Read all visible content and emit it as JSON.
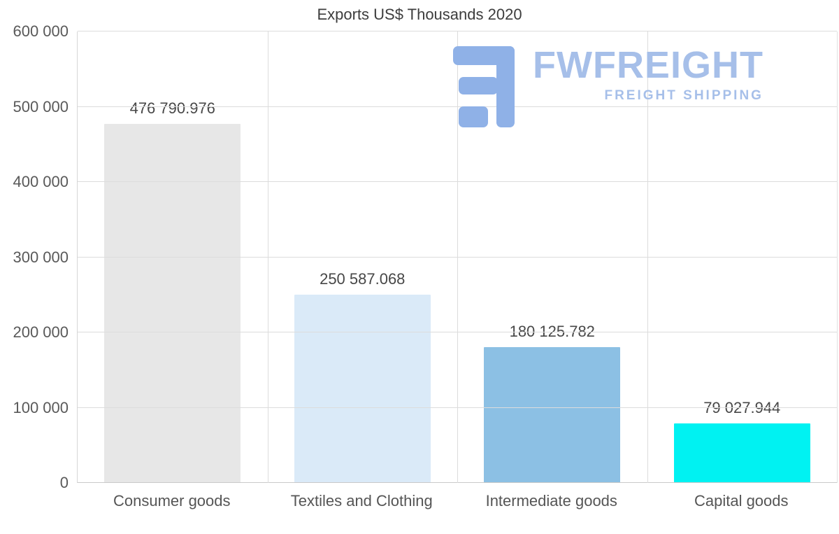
{
  "watermark": {
    "brand": "FWFREIGHT",
    "tagline": "FREIGHT SHIPPING",
    "color": "#a6bfe9",
    "glyph_color": "#8fb1e7"
  },
  "chart_data": {
    "type": "bar",
    "title": "Exports US$ Thousands 2020",
    "categories": [
      "Consumer goods",
      "Textiles and Clothing",
      "Intermediate goods",
      "Capital goods"
    ],
    "values": [
      476790.976,
      250587.068,
      180125.782,
      79027.944
    ],
    "value_labels": [
      "476 790.976",
      "250 587.068",
      "180 125.782",
      "79 027.944"
    ],
    "bar_colors": [
      "#e7e7e7",
      "#daeaf8",
      "#8cc0e4",
      "#00f2f2"
    ],
    "xlabel": "",
    "ylabel": "",
    "ylim": [
      0,
      600000
    ],
    "ytick_step": 100000,
    "ytick_labels": [
      "0",
      "100 000",
      "200 000",
      "300 000",
      "400 000",
      "500 000",
      "600 000"
    ],
    "grid": true,
    "legend": false
  }
}
